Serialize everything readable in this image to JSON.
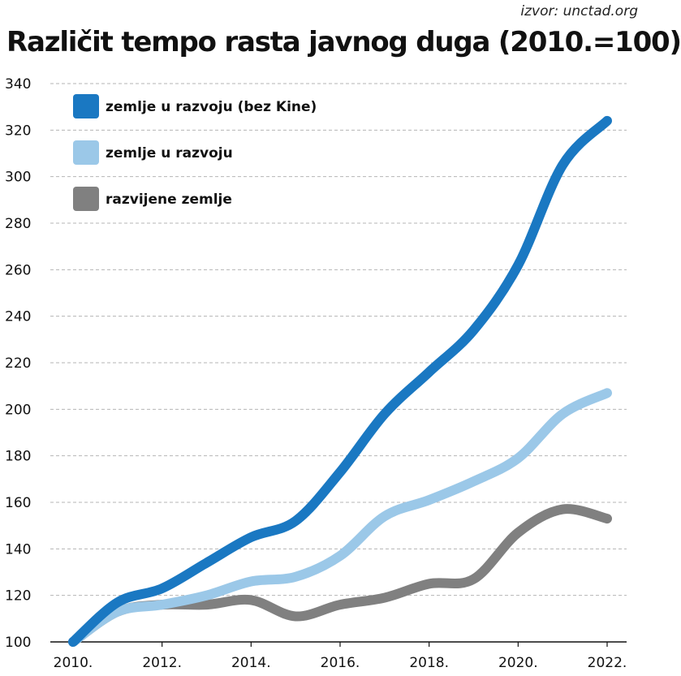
{
  "source": "izvor: unctad.org",
  "chart_data": {
    "type": "line",
    "title": "Različit tempo rasta javnog duga (2010.=100)",
    "xlabel": "",
    "ylabel": "",
    "x": [
      2010,
      2011,
      2012,
      2013,
      2014,
      2015,
      2016,
      2017,
      2018,
      2019,
      2020,
      2021,
      2022
    ],
    "x_tick_labels": [
      "2010.",
      "2012.",
      "2014.",
      "2016.",
      "2018.",
      "2020.",
      "2022."
    ],
    "y_ticks": [
      100,
      120,
      140,
      160,
      180,
      200,
      220,
      240,
      260,
      280,
      300,
      320,
      340
    ],
    "ylim": [
      100,
      340
    ],
    "grid": true,
    "legend_position": "top-left",
    "series": [
      {
        "name": "zemlje u razvoju (bez Kine)",
        "color": "#1a78c2",
        "values": [
          100,
          117,
          123,
          134,
          145,
          152,
          173,
          198,
          216,
          234,
          262,
          305,
          324
        ]
      },
      {
        "name": "zemlje u razvoju",
        "color": "#9bc8e8",
        "values": [
          100,
          113,
          116,
          120,
          126,
          128,
          137,
          154,
          161,
          169,
          179,
          198,
          207
        ]
      },
      {
        "name": "razvijene zemlje",
        "color": "#808080",
        "values": [
          100,
          113,
          116,
          116,
          118,
          111,
          116,
          119,
          125,
          127,
          147,
          157,
          153
        ]
      }
    ]
  }
}
